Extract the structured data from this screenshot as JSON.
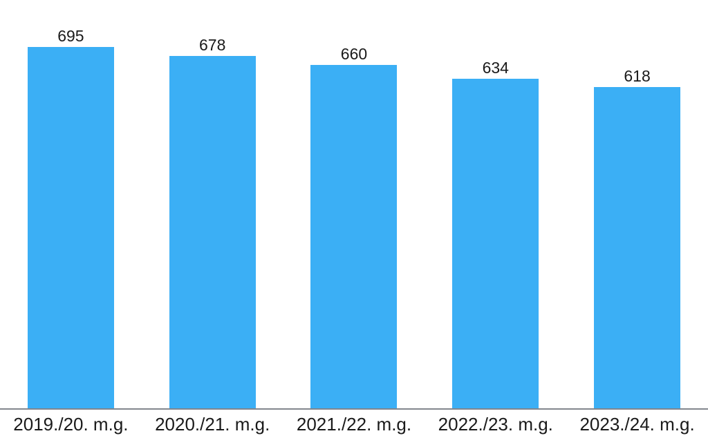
{
  "chart_data": {
    "type": "bar",
    "categories": [
      "2019./20. m.g.",
      "2020./21. m.g.",
      "2021./22. m.g.",
      "2022./23. m.g.",
      "2023./24. m.g."
    ],
    "values": [
      695,
      678,
      660,
      634,
      618
    ],
    "value_labels": [
      "695",
      "678",
      "660",
      "634",
      "618"
    ],
    "ylim": [
      0,
      785
    ],
    "grid": false,
    "legend": "none",
    "value_labels_position": "above-bar",
    "axis_labels_position": "bottom",
    "colors": {
      "bar": "#3baff5",
      "axis_line": "#82868d",
      "text": "#1a1a1a",
      "background": "#ffffff"
    }
  }
}
